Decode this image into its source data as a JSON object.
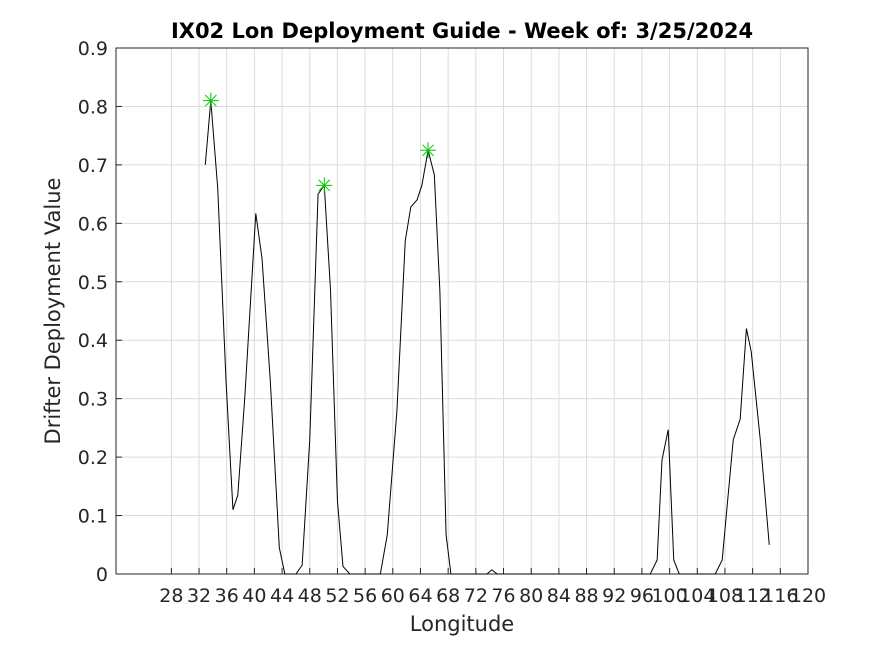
{
  "chart_data": {
    "type": "line",
    "title": "IX02 Lon Deployment Guide - Week of: 3/25/2024",
    "xlabel": "Longitude",
    "ylabel": "Drifter Deployment Value",
    "x": [
      32.9,
      33.7,
      34.7,
      35.9,
      36.9,
      37.6,
      38.6,
      40.2,
      41.1,
      42.3,
      43.6,
      44.4,
      46.0,
      46.9,
      48.0,
      49.2,
      50.1,
      51.0,
      52.0,
      52.8,
      53.8,
      58.2,
      59.2,
      60.6,
      61.8,
      62.6,
      63.5,
      64.2,
      65.1,
      66.0,
      66.8,
      67.7,
      68.4,
      73.6,
      74.3,
      75.1,
      97.2,
      98.2,
      98.9,
      99.8,
      100.6,
      101.4,
      106.6,
      107.6,
      109.2,
      110.2,
      111.1,
      111.8,
      113.1,
      114.4
    ],
    "values": [
      0.7,
      0.81,
      0.66,
      0.33,
      0.11,
      0.135,
      0.3,
      0.617,
      0.54,
      0.33,
      0.045,
      0,
      0,
      0.015,
      0.23,
      0.65,
      0.665,
      0.485,
      0.125,
      0.013,
      0,
      0,
      0.067,
      0.28,
      0.57,
      0.628,
      0.64,
      0.665,
      0.725,
      0.683,
      0.485,
      0.067,
      0,
      0,
      0.007,
      0,
      0,
      0.024,
      0.195,
      0.247,
      0.024,
      0,
      0,
      0.024,
      0.23,
      0.265,
      0.42,
      0.38,
      0.23,
      0.05
    ],
    "color": "#000000",
    "peaks": {
      "x": [
        33.7,
        50.1,
        65.1
      ],
      "values": [
        0.81,
        0.665,
        0.725
      ],
      "color": "#00cc00"
    },
    "xlim": [
      20,
      120
    ],
    "xticks": [
      28,
      32,
      36,
      40,
      44,
      48,
      52,
      56,
      60,
      64,
      68,
      72,
      76,
      80,
      84,
      88,
      92,
      96,
      100,
      104,
      108,
      112,
      116,
      120
    ],
    "ylim": [
      0,
      0.9
    ],
    "yticks": [
      0,
      0.1,
      0.2,
      0.3,
      0.4,
      0.5,
      0.6,
      0.7,
      0.8,
      0.9
    ],
    "grid": true
  }
}
